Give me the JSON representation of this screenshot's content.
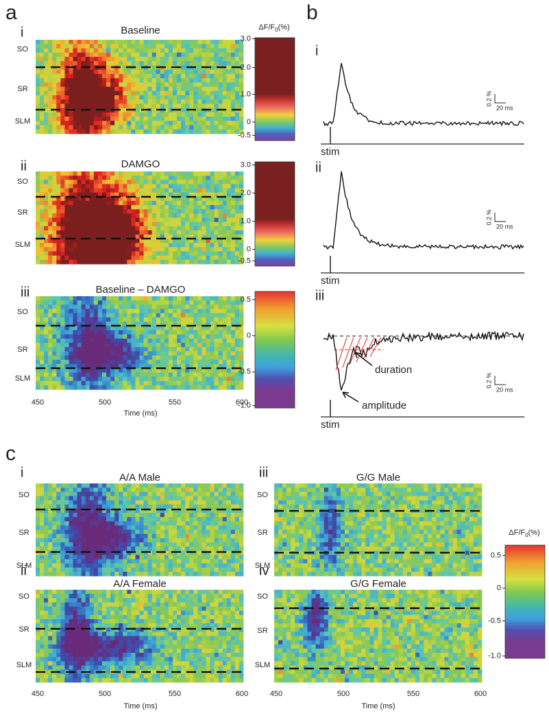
{
  "panel_a": {
    "label": "a",
    "colorbar_title": {
      "main": "ΔF/F",
      "sub": "0",
      "unit": "(%)"
    },
    "rows": [
      {
        "numeral": "i",
        "title": "Baseline",
        "layers": [
          "SO",
          "SR",
          "SLM"
        ],
        "colorbar_ticks": [
          "3.0",
          "2.0",
          "1.0",
          "0",
          "-0.5"
        ]
      },
      {
        "numeral": "ii",
        "title": "DAMGO",
        "layers": [
          "SO",
          "SR",
          "SLM"
        ],
        "colorbar_ticks": [
          "3.0",
          "2.0",
          "1.0",
          "0",
          "-0.5"
        ]
      },
      {
        "numeral": "iii",
        "title": "Baseline – DAMGO",
        "layers": [
          "SO",
          "SR",
          "SLM"
        ],
        "colorbar_ticks": [
          "0.5",
          "0",
          "-0.5",
          "-1.0"
        ]
      }
    ],
    "x_ticks": [
      "450",
      "500",
      "550",
      "600"
    ],
    "x_label": "Time (ms)"
  },
  "panel_b": {
    "label": "b",
    "traces": [
      {
        "numeral": "i",
        "stim": "stim",
        "scale_y": "0.2 %",
        "scale_x": "20 ms"
      },
      {
        "numeral": "ii",
        "stim": "stim",
        "scale_y": "0.2 %",
        "scale_x": "20 ms"
      },
      {
        "numeral": "iii",
        "stim": "stim",
        "scale_y": "0.2 %",
        "scale_x": "20 ms"
      }
    ],
    "annotations": [
      "duration",
      "amplitude"
    ]
  },
  "panel_c": {
    "label": "c",
    "maps": [
      {
        "numeral": "i",
        "title": "A/A Male",
        "layers": [
          "SO",
          "SR",
          "SLM"
        ]
      },
      {
        "numeral": "ii",
        "title": "A/A Female",
        "layers": [
          "SO",
          "SR",
          "SLM"
        ]
      },
      {
        "numeral": "iii",
        "title": "G/G Male",
        "layers": [
          "SO",
          "SR",
          "SLM"
        ]
      },
      {
        "numeral": "iv",
        "title": "G/G Female",
        "layers": [
          "SO",
          "SR",
          "SLM"
        ]
      }
    ],
    "x_ticks": [
      "450",
      "500",
      "550",
      "600"
    ],
    "x_label": "Time (ms)",
    "colorbar_title": {
      "main": "ΔF/F",
      "sub": "0",
      "unit": "(%)"
    },
    "colorbar_ticks": [
      "0.5",
      "0",
      "-0.5",
      "-1.0"
    ]
  }
}
